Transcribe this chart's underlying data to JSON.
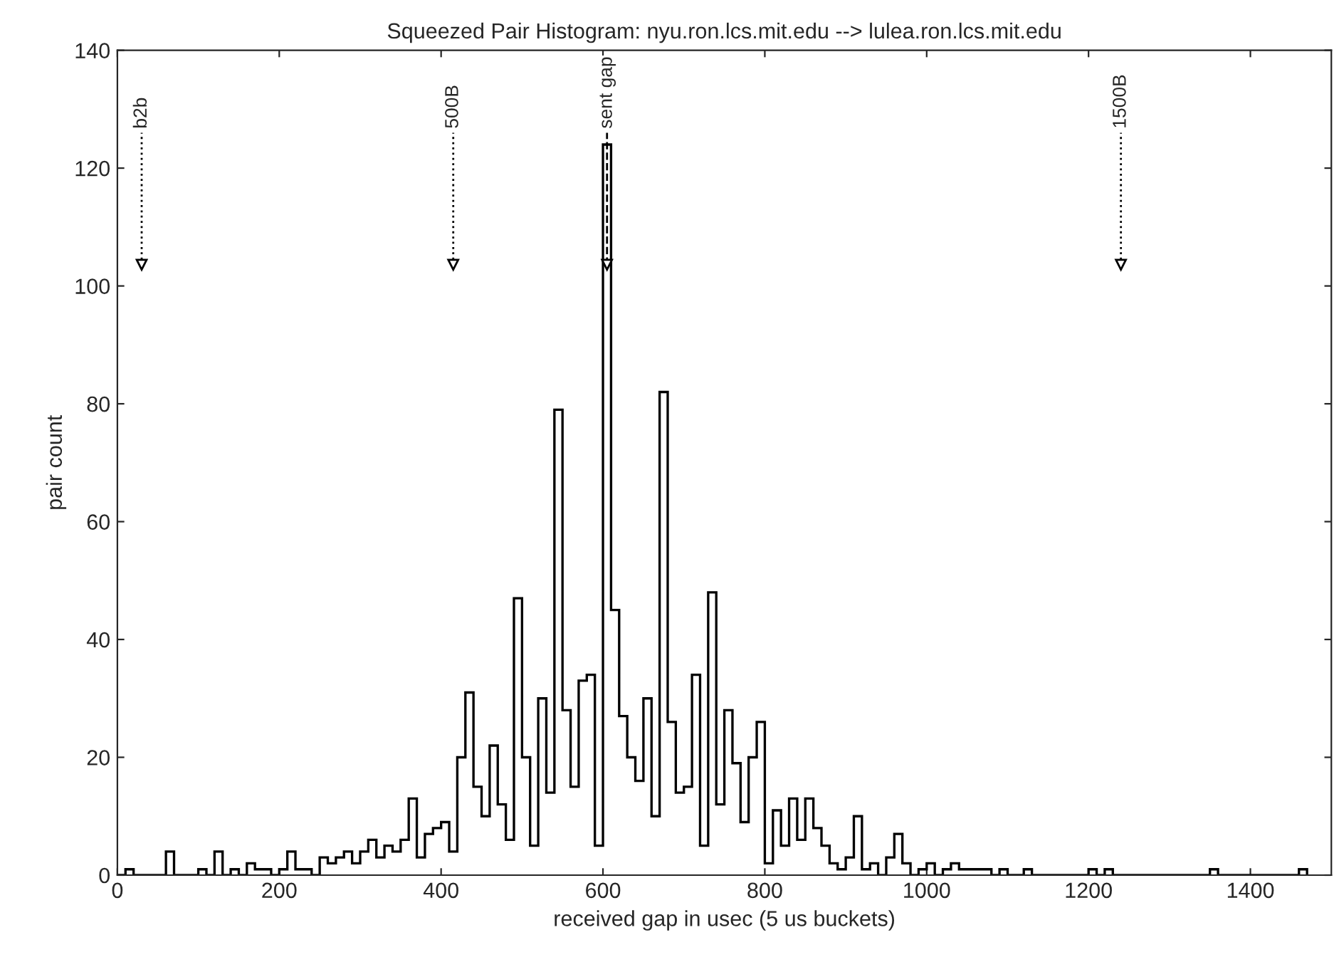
{
  "chart_data": {
    "type": "histogram",
    "title": "Squeezed Pair Histogram: nyu.ron.lcs.mit.edu --> lulea.ron.lcs.mit.edu",
    "xlabel": "received gap in usec (5 us buckets)",
    "ylabel": "pair count",
    "bins": [
      0,
      10,
      20,
      30,
      40,
      50,
      60,
      70,
      80,
      90,
      100,
      110,
      120,
      130,
      140,
      150,
      160,
      170,
      180,
      190,
      200,
      210,
      220,
      230,
      240,
      250,
      260,
      270,
      280,
      290,
      300,
      310,
      320,
      330,
      340,
      350,
      360,
      370,
      380,
      390,
      400,
      410,
      420,
      430,
      440,
      450,
      460,
      470,
      480,
      490,
      500,
      510,
      520,
      530,
      540,
      550,
      560,
      570,
      580,
      590,
      600,
      610,
      620,
      630,
      640,
      650,
      660,
      670,
      680,
      690,
      700,
      710,
      720,
      730,
      740,
      750,
      760,
      770,
      780,
      790,
      800,
      810,
      820,
      830,
      840,
      850,
      860,
      870,
      880,
      890,
      900,
      910,
      920,
      930,
      940,
      950,
      960,
      970,
      980,
      990,
      1000,
      1010,
      1020,
      1030,
      1040,
      1050,
      1060,
      1070,
      1080,
      1090,
      1100,
      1110,
      1120,
      1130,
      1140,
      1150,
      1160,
      1170,
      1180,
      1190,
      1200,
      1210,
      1220,
      1230,
      1240,
      1250,
      1260,
      1270,
      1280,
      1290,
      1300,
      1310,
      1320,
      1330,
      1340,
      1350,
      1360,
      1370,
      1380,
      1390,
      1400,
      1410,
      1420,
      1430,
      1440,
      1450,
      1460,
      1470
    ],
    "values": [
      0,
      1,
      0,
      0,
      0,
      0,
      4,
      0,
      0,
      0,
      1,
      0,
      4,
      0,
      1,
      0,
      2,
      1,
      1,
      0,
      1,
      4,
      1,
      1,
      0,
      3,
      2,
      3,
      4,
      2,
      4,
      6,
      3,
      5,
      4,
      6,
      13,
      3,
      7,
      8,
      9,
      4,
      20,
      31,
      15,
      10,
      22,
      12,
      6,
      47,
      20,
      5,
      30,
      14,
      79,
      28,
      15,
      33,
      34,
      5,
      124,
      45,
      27,
      20,
      16,
      30,
      10,
      82,
      26,
      14,
      15,
      34,
      5,
      48,
      12,
      28,
      19,
      9,
      20,
      26,
      2,
      11,
      5,
      13,
      6,
      13,
      8,
      5,
      2,
      1,
      3,
      10,
      1,
      2,
      0,
      3,
      7,
      2,
      0,
      1,
      2,
      0,
      1,
      2,
      1,
      1,
      1,
      1,
      0,
      1,
      0,
      0,
      1,
      0,
      0,
      0,
      0,
      0,
      0,
      0,
      1,
      0,
      1,
      0,
      0,
      0,
      0,
      0,
      0,
      0,
      0,
      0,
      0,
      0,
      0,
      1,
      0,
      0,
      0,
      0,
      0,
      0,
      0,
      0,
      0,
      0,
      1
    ],
    "color": "#000000",
    "xlim": [
      0,
      1500
    ],
    "xticks": [
      0,
      200,
      400,
      600,
      800,
      1000,
      1200,
      1400
    ],
    "ylim": [
      0,
      140
    ],
    "yticks": [
      0,
      20,
      40,
      60,
      80,
      100,
      120,
      140
    ],
    "grid": false,
    "legend": false,
    "ref_lines": [
      {
        "axis": "x",
        "value": 30,
        "label": "b2b",
        "line_style": "dotted"
      },
      {
        "axis": "x",
        "value": 415,
        "label": "500B",
        "line_style": "dotted"
      },
      {
        "axis": "x",
        "value": 605,
        "label": "sent gap",
        "line_style": "dashed"
      },
      {
        "axis": "x",
        "value": 1240,
        "label": "1500B",
        "line_style": "dotted"
      }
    ]
  }
}
